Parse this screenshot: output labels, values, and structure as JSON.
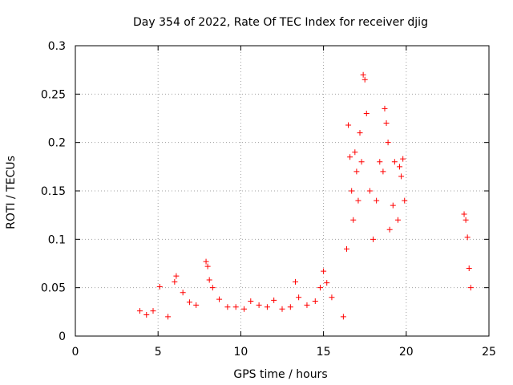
{
  "chart_data": {
    "type": "scatter",
    "title": "Day 354 of 2022, Rate Of TEC Index for receiver djig",
    "xlabel": "GPS time / hours",
    "ylabel": "ROTI / TECUs",
    "xlim": [
      0,
      25
    ],
    "ylim": [
      0,
      0.3
    ],
    "x_ticks": [
      "0",
      "5",
      "10",
      "15",
      "20",
      "25"
    ],
    "y_ticks": [
      "0",
      "0.05",
      "0.1",
      "0.15",
      "0.2",
      "0.25",
      "0.3"
    ],
    "grid": true,
    "marker": "+",
    "series": [
      {
        "color": "#ff0000",
        "points": [
          [
            3.9,
            0.026
          ],
          [
            4.3,
            0.022
          ],
          [
            4.7,
            0.026
          ],
          [
            5.1,
            0.051
          ],
          [
            5.6,
            0.02
          ],
          [
            6.0,
            0.056
          ],
          [
            6.1,
            0.062
          ],
          [
            6.5,
            0.045
          ],
          [
            6.9,
            0.035
          ],
          [
            7.3,
            0.032
          ],
          [
            7.9,
            0.077
          ],
          [
            8.0,
            0.072
          ],
          [
            8.1,
            0.058
          ],
          [
            8.3,
            0.05
          ],
          [
            8.7,
            0.038
          ],
          [
            9.2,
            0.03
          ],
          [
            9.7,
            0.03
          ],
          [
            10.2,
            0.028
          ],
          [
            10.6,
            0.036
          ],
          [
            11.1,
            0.032
          ],
          [
            11.6,
            0.03
          ],
          [
            12.0,
            0.037
          ],
          [
            12.5,
            0.028
          ],
          [
            13.0,
            0.03
          ],
          [
            13.3,
            0.056
          ],
          [
            13.5,
            0.04
          ],
          [
            14.0,
            0.032
          ],
          [
            14.5,
            0.036
          ],
          [
            14.8,
            0.05
          ],
          [
            15.0,
            0.067
          ],
          [
            15.2,
            0.055
          ],
          [
            15.5,
            0.04
          ],
          [
            16.2,
            0.02
          ],
          [
            16.4,
            0.09
          ],
          [
            16.5,
            0.218
          ],
          [
            16.6,
            0.185
          ],
          [
            16.7,
            0.15
          ],
          [
            16.8,
            0.12
          ],
          [
            16.9,
            0.19
          ],
          [
            17.0,
            0.17
          ],
          [
            17.1,
            0.14
          ],
          [
            17.2,
            0.21
          ],
          [
            17.3,
            0.18
          ],
          [
            17.4,
            0.27
          ],
          [
            17.5,
            0.265
          ],
          [
            17.6,
            0.23
          ],
          [
            17.8,
            0.15
          ],
          [
            18.0,
            0.1
          ],
          [
            18.2,
            0.14
          ],
          [
            18.4,
            0.18
          ],
          [
            18.6,
            0.17
          ],
          [
            18.7,
            0.235
          ],
          [
            18.8,
            0.22
          ],
          [
            18.9,
            0.2
          ],
          [
            19.0,
            0.11
          ],
          [
            19.2,
            0.135
          ],
          [
            19.3,
            0.18
          ],
          [
            19.5,
            0.12
          ],
          [
            19.6,
            0.175
          ],
          [
            19.7,
            0.165
          ],
          [
            19.8,
            0.183
          ],
          [
            19.9,
            0.14
          ],
          [
            23.5,
            0.126
          ],
          [
            23.6,
            0.12
          ],
          [
            23.7,
            0.102
          ],
          [
            23.8,
            0.07
          ],
          [
            23.9,
            0.05
          ]
        ]
      }
    ]
  }
}
